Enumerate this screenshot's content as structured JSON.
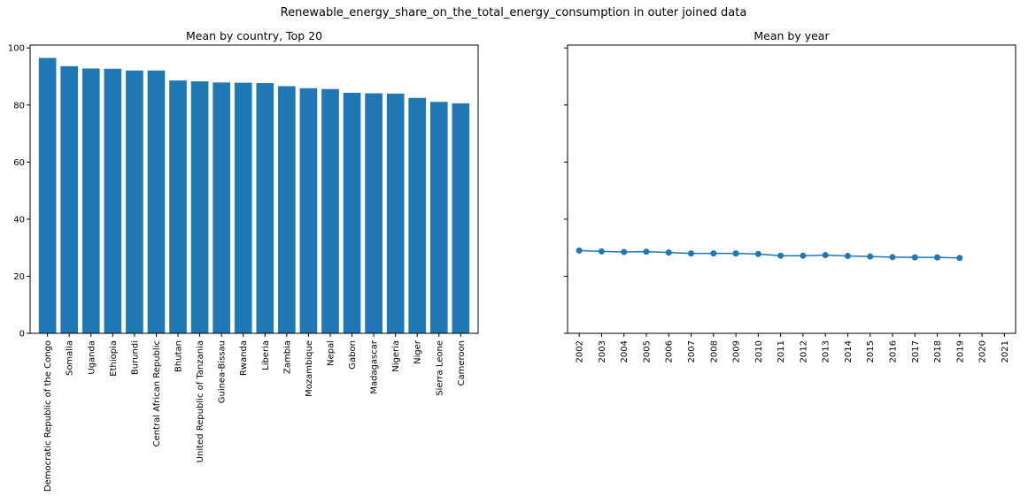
{
  "suptitle": "Renewable_energy_share_on_the_total_energy_consumption in outer joined data",
  "colors": {
    "bar": "#1f77b4",
    "line": "#1f77b4",
    "axis": "#000000"
  },
  "chart_data": [
    {
      "type": "bar",
      "title": "Mean by country, Top 20",
      "xlabel": "",
      "ylabel": "",
      "ylim": [
        0,
        101
      ],
      "yticks": [
        0,
        20,
        40,
        60,
        80,
        100
      ],
      "grid": false,
      "categories": [
        "Democratic Republic of the Congo",
        "Somalia",
        "Uganda",
        "Ethiopia",
        "Burundi",
        "Central African Republic",
        "Bhutan",
        "United Republic of Tanzania",
        "Guinea-Bissau",
        "Rwanda",
        "Liberia",
        "Zambia",
        "Mozambique",
        "Nepal",
        "Gabon",
        "Madagascar",
        "Nigeria",
        "Niger",
        "Sierra Leone",
        "Cameroon"
      ],
      "values": [
        96.5,
        93.6,
        92.8,
        92.7,
        92.1,
        92.1,
        88.6,
        88.3,
        87.9,
        87.8,
        87.7,
        86.6,
        85.9,
        85.6,
        84.3,
        84.1,
        84.0,
        82.5,
        81.1,
        80.6
      ]
    },
    {
      "type": "line",
      "title": "Mean by year",
      "xlabel": "",
      "ylabel": "",
      "ylim": [
        0,
        101
      ],
      "yticks": [
        0,
        20,
        40,
        60,
        80,
        100
      ],
      "shared_y": true,
      "grid": false,
      "x_ticks": [
        2002,
        2003,
        2004,
        2005,
        2006,
        2007,
        2008,
        2009,
        2010,
        2011,
        2012,
        2013,
        2014,
        2015,
        2016,
        2017,
        2018,
        2019,
        2020,
        2021
      ],
      "x": [
        2002,
        2003,
        2004,
        2005,
        2006,
        2007,
        2008,
        2009,
        2010,
        2011,
        2012,
        2013,
        2014,
        2015,
        2016,
        2017,
        2018,
        2019
      ],
      "values": [
        29.0,
        28.7,
        28.5,
        28.6,
        28.3,
        28.0,
        28.0,
        28.0,
        27.8,
        27.2,
        27.2,
        27.4,
        27.1,
        26.9,
        26.7,
        26.6,
        26.6,
        26.4
      ]
    }
  ]
}
